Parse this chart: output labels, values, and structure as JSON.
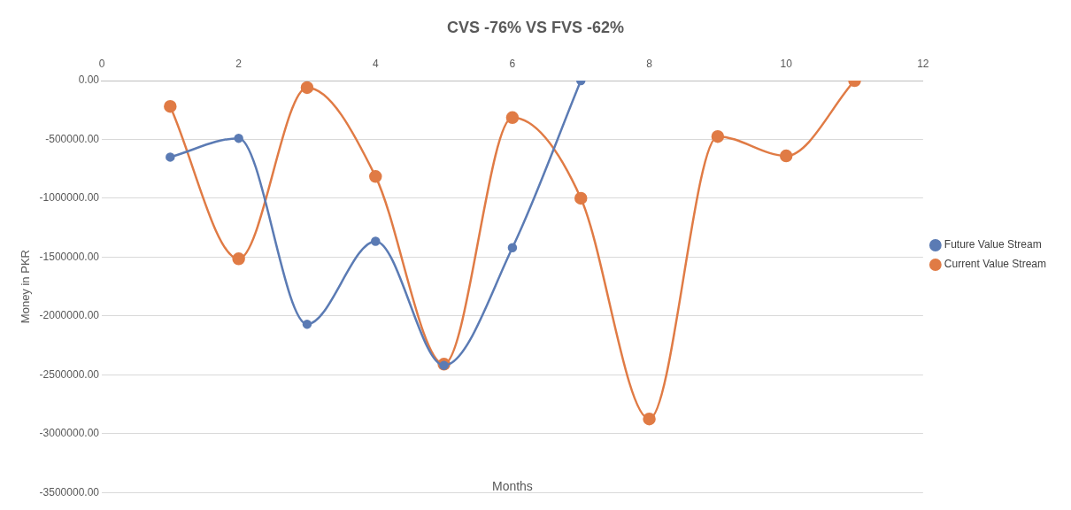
{
  "chart_data": {
    "type": "line",
    "title": "CVS -76% VS FVS -62%",
    "xlabel": "Months",
    "ylabel": "Money in PKR",
    "xlim": [
      0,
      12
    ],
    "xticks": [
      0,
      2,
      4,
      6,
      8,
      10,
      12
    ],
    "ylim": [
      -3500000,
      0
    ],
    "yticks": [
      {
        "value": 0,
        "label": "0.00"
      },
      {
        "value": -500000,
        "label": "-500000.00"
      },
      {
        "value": -1000000,
        "label": "-1000000.00"
      },
      {
        "value": -1500000,
        "label": "-1500000.00"
      },
      {
        "value": -2000000,
        "label": "-2000000.00"
      },
      {
        "value": -2500000,
        "label": "-2500000.00"
      },
      {
        "value": -3000000,
        "label": "-3000000.00"
      },
      {
        "value": -3500000,
        "label": "-3500000.00"
      }
    ],
    "grid": "y",
    "legend": "right",
    "marker": "circle",
    "line_style": "solid",
    "series": [
      {
        "name": "Future Value Stream",
        "color": "#5b7bb4",
        "x": [
          1,
          2,
          3,
          4,
          5,
          6,
          7
        ],
        "values": [
          -650000,
          -490000,
          -2070000,
          -1365000,
          -2420000,
          -1420000,
          0
        ]
      },
      {
        "name": "Current Value Stream",
        "color": "#e07b45",
        "x": [
          1,
          2,
          3,
          4,
          5,
          6,
          7,
          8,
          9,
          10,
          11
        ],
        "values": [
          -220000,
          -1515000,
          -60000,
          -815000,
          -2410000,
          -315000,
          -1000000,
          -2875000,
          -475000,
          -640000,
          0
        ]
      }
    ]
  }
}
